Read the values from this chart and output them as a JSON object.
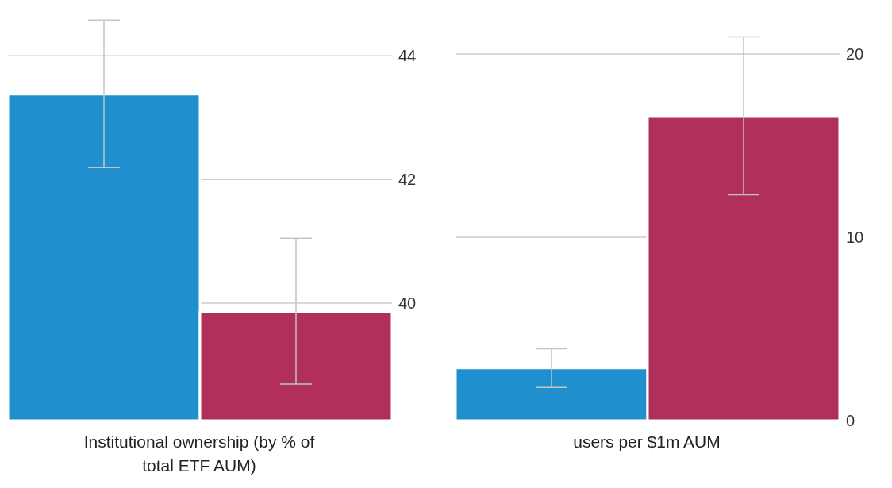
{
  "chart_data": [
    {
      "type": "bar",
      "xlabel": "Institutional ownership (by % of total ETF AUM)",
      "categories": [
        null,
        null
      ],
      "values": [
        43.38,
        39.86
      ],
      "colors": [
        "#1f8fce",
        "#b0305a"
      ],
      "errors": [
        [
          42.19,
          44.58
        ],
        [
          38.69,
          41.05
        ]
      ],
      "ylim": [
        38.1,
        44.8
      ],
      "yticks": [
        40,
        42,
        44
      ],
      "grid": "y",
      "tick_labels": "y"
    },
    {
      "type": "bar",
      "xlabel": "users per $1m AUM",
      "categories": [
        null,
        null
      ],
      "values": [
        2.87,
        16.58
      ],
      "colors": [
        "#1f8fce",
        "#b0305a"
      ],
      "errors": [
        [
          1.81,
          3.92
        ],
        [
          12.32,
          20.93
        ]
      ],
      "ylim": [
        0,
        22.6
      ],
      "yticks": [
        0,
        10,
        20
      ],
      "grid": "y",
      "tick_labels": "y"
    }
  ]
}
